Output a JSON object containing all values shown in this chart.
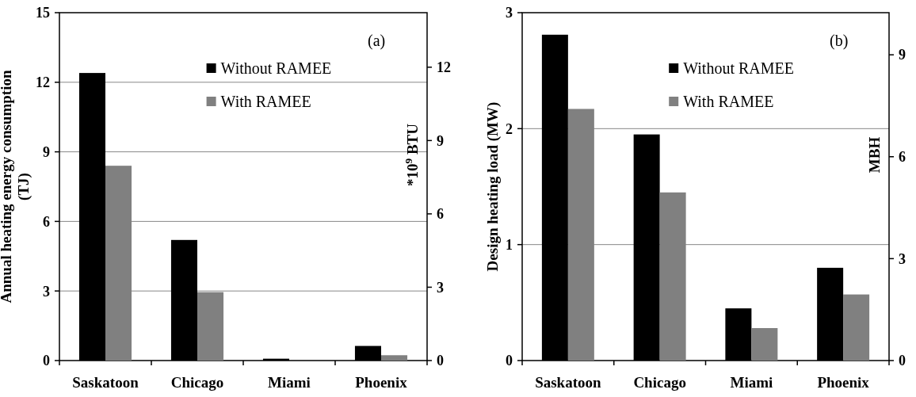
{
  "chart_data": [
    {
      "type": "bar",
      "categories": [
        "Saskatoon",
        "Chicago",
        "Miami",
        "Phoenix"
      ],
      "ylabel": "Annual heating energy consumption (TJ)",
      "y2label": "*10$^{9}$ BTU",
      "ylim": [
        0,
        15
      ],
      "yticks": [
        0,
        3,
        6,
        9,
        12,
        15
      ],
      "y2lim": [
        0,
        14.23
      ],
      "y2ticks": [
        0,
        3,
        6,
        9,
        12
      ],
      "grid": "y",
      "legend": "top right",
      "annotations": [
        "(a)"
      ],
      "series": [
        {
          "name": "Without RAMEE",
          "color": "#000000",
          "values": [
            12.4,
            5.2,
            0.08,
            0.63
          ]
        },
        {
          "name": "With RAMEE",
          "color": "#808080",
          "values": [
            8.4,
            2.95,
            null,
            0.23
          ]
        }
      ]
    },
    {
      "type": "bar",
      "categories": [
        "Saskatoon",
        "Chicago",
        "Miami",
        "Phoenix"
      ],
      "ylabel": "Design heating load (MW)",
      "y2label": "MBH",
      "ylim": [
        0,
        3
      ],
      "yticks": [
        0,
        1,
        2,
        3
      ],
      "y2lim": [
        0,
        10.24
      ],
      "y2ticks": [
        0,
        3,
        6,
        9
      ],
      "grid": "y",
      "legend": "top right",
      "annotations": [
        "(b)"
      ],
      "series": [
        {
          "name": "Without RAMEE",
          "color": "#000000",
          "values": [
            2.81,
            1.95,
            0.45,
            0.8
          ]
        },
        {
          "name": "With RAMEE",
          "color": "#808080",
          "values": [
            2.17,
            1.45,
            0.28,
            0.57
          ]
        }
      ]
    }
  ]
}
